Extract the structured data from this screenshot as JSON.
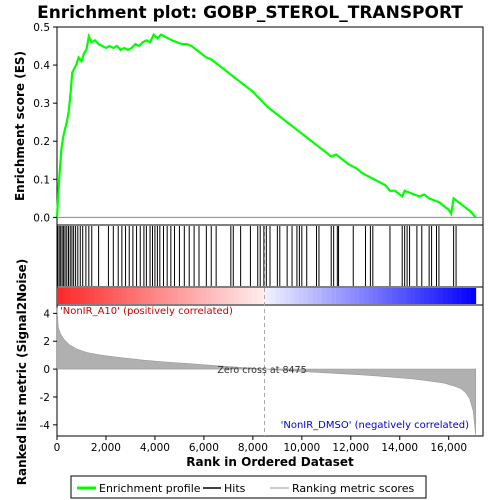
{
  "chart_data": {
    "type": "line",
    "title": "Enrichment plot: GOBP_STEROL_TRANSPORT",
    "xlabel": "Rank in Ordered Dataset",
    "ylabel_top": "Enrichment score (ES)",
    "ylabel_bottom": "Ranked list metric (Signal2Noise)",
    "xlim": [
      0,
      17400
    ],
    "ylim_es": [
      -0.02,
      0.5
    ],
    "ylim_metric": [
      -4.8,
      4.6
    ],
    "x_ticks": [
      0,
      2000,
      4000,
      6000,
      8000,
      10000,
      12000,
      14000,
      16000
    ],
    "x_tick_labels": [
      "0",
      "2,000",
      "4,000",
      "6,000",
      "8,000",
      "10,000",
      "12,000",
      "14,000",
      "16,000"
    ],
    "es_ticks": [
      0.0,
      0.1,
      0.2,
      0.3,
      0.4,
      0.5
    ],
    "es_tick_labels": [
      "0.0",
      "0.1",
      "0.2",
      "0.3",
      "0.4",
      "0.5"
    ],
    "metric_ticks": [
      4,
      2,
      0,
      -2,
      -4
    ],
    "metric_tick_labels": [
      "4",
      "2",
      "0",
      "-2",
      "-4"
    ],
    "zero_cross_rank": 8475,
    "zero_cross_label": "Zero cross at 8475",
    "positive_label": "'NonIR_A10' (positively correlated)",
    "negative_label": "'NonIR_DMSO' (negatively correlated)",
    "series": [
      {
        "name": "Enrichment profile",
        "color": "#00ff00",
        "x": [
          0,
          60,
          110,
          180,
          250,
          320,
          400,
          480,
          560,
          620,
          700,
          780,
          880,
          1000,
          1100,
          1200,
          1300,
          1400,
          1550,
          1700,
          1850,
          2000,
          2150,
          2300,
          2450,
          2600,
          2750,
          2900,
          3050,
          3200,
          3350,
          3500,
          3650,
          3800,
          3950,
          4100,
          4250,
          4400,
          4550,
          4700,
          4900,
          5100,
          5300,
          5500,
          5700,
          5900,
          6100,
          6300,
          6500,
          6800,
          7100,
          7400,
          7700,
          8000,
          8300,
          8600,
          8900,
          9200,
          9500,
          9800,
          10100,
          10400,
          10700,
          11000,
          11200,
          11400,
          11600,
          11900,
          12200,
          12500,
          12800,
          13100,
          13400,
          13600,
          13800,
          14000,
          14100,
          14200,
          14400,
          14600,
          14800,
          15000,
          15200,
          15400,
          15600,
          15800,
          16000,
          16100,
          16200,
          16300,
          16500,
          16700,
          16900,
          17100
        ],
        "y": [
          0.0,
          0.07,
          0.12,
          0.18,
          0.21,
          0.23,
          0.25,
          0.28,
          0.33,
          0.38,
          0.39,
          0.4,
          0.42,
          0.41,
          0.43,
          0.44,
          0.475,
          0.46,
          0.465,
          0.455,
          0.45,
          0.445,
          0.45,
          0.445,
          0.45,
          0.44,
          0.445,
          0.44,
          0.445,
          0.455,
          0.45,
          0.46,
          0.465,
          0.46,
          0.48,
          0.47,
          0.48,
          0.475,
          0.47,
          0.465,
          0.46,
          0.455,
          0.455,
          0.45,
          0.44,
          0.43,
          0.42,
          0.415,
          0.405,
          0.39,
          0.375,
          0.36,
          0.345,
          0.33,
          0.31,
          0.29,
          0.275,
          0.26,
          0.245,
          0.23,
          0.215,
          0.2,
          0.185,
          0.17,
          0.16,
          0.165,
          0.155,
          0.14,
          0.13,
          0.115,
          0.105,
          0.095,
          0.085,
          0.07,
          0.07,
          0.06,
          0.055,
          0.07,
          0.065,
          0.06,
          0.055,
          0.06,
          0.05,
          0.045,
          0.04,
          0.03,
          0.02,
          0.01,
          0.05,
          0.045,
          0.035,
          0.025,
          0.015,
          0.0
        ]
      }
    ],
    "hits": [
      30,
      90,
      150,
      210,
      270,
      330,
      400,
      470,
      540,
      610,
      680,
      760,
      850,
      950,
      1050,
      1180,
      1300,
      1420,
      1700,
      2100,
      2300,
      2500,
      2650,
      2800,
      2950,
      3100,
      3250,
      3400,
      3550,
      3650,
      3800,
      3900,
      4000,
      4100,
      4200,
      4350,
      4500,
      4650,
      4800,
      5000,
      5200,
      5400,
      5600,
      5800,
      6100,
      6300,
      6500,
      7100,
      7200,
      7500,
      7900,
      8200,
      8300,
      8450,
      8550,
      8700,
      9000,
      9100,
      9400,
      9600,
      9800,
      9900,
      10000,
      10200,
      10600,
      10700,
      11200,
      11300,
      11450,
      11500,
      12100,
      12600,
      12800,
      12900,
      13600,
      14100,
      14200,
      14300,
      14400,
      14700,
      14900,
      15200,
      15300,
      15500,
      15600,
      16200,
      16300
    ],
    "metric_curve": {
      "x": [
        0,
        50,
        150,
        300,
        500,
        800,
        1200,
        1800,
        2500,
        3500,
        4500,
        5500,
        6500,
        7500,
        8475,
        9500,
        10500,
        11500,
        12500,
        13500,
        14500,
        15200,
        15800,
        16200,
        16500,
        16700,
        16850,
        17000,
        17100
      ],
      "y": [
        4.4,
        3.0,
        2.5,
        2.1,
        1.75,
        1.45,
        1.2,
        1.0,
        0.85,
        0.65,
        0.5,
        0.38,
        0.25,
        0.12,
        0.0,
        -0.12,
        -0.22,
        -0.32,
        -0.42,
        -0.55,
        -0.7,
        -0.85,
        -1.0,
        -1.2,
        -1.4,
        -1.7,
        -2.1,
        -3.0,
        -4.7
      ]
    },
    "legend": [
      {
        "label": "Enrichment profile",
        "color": "#00ff00",
        "kind": "line"
      },
      {
        "label": "Hits",
        "color": "#000000",
        "kind": "line"
      },
      {
        "label": "Ranking metric scores",
        "color": "#bbbbbb",
        "kind": "line"
      }
    ]
  }
}
